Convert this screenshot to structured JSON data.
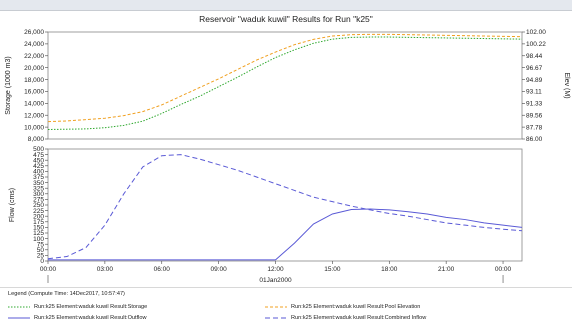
{
  "window": {
    "title": ""
  },
  "chart_data": [
    {
      "type": "line",
      "title": "Reservoir \"waduk kuwil\" Results for Run \"k25\"",
      "ylabel": "Storage (1000 m3)",
      "ylabel_right": "Elev (M)",
      "ylim": [
        8000,
        26000
      ],
      "ylim_right": [
        86.0,
        102.0
      ],
      "yticks": [
        8000,
        10000,
        12000,
        14000,
        16000,
        18000,
        20000,
        22000,
        24000,
        26000
      ],
      "ytick_labels": [
        "8,000",
        "10,000",
        "12,000",
        "14,000",
        "16,000",
        "18,000",
        "20,000",
        "22,000",
        "24,000",
        "26,000"
      ],
      "yticks_right_labels": [
        "86.00",
        "87.78",
        "89.56",
        "91.33",
        "93.11",
        "94.89",
        "96.67",
        "98.44",
        "100.22",
        "102.00"
      ],
      "x": [
        0,
        1,
        2,
        3,
        4,
        5,
        6,
        7,
        8,
        9,
        10,
        11,
        12,
        13,
        14,
        15,
        16,
        17,
        18,
        19,
        20,
        21,
        22,
        23,
        24,
        25
      ],
      "series": [
        {
          "name": "Run:k25 Element:waduk kuwil Result:Storage",
          "color": "#2fa82f",
          "values": [
            9600,
            9650,
            9700,
            9900,
            10300,
            11000,
            12300,
            13800,
            15200,
            16800,
            18400,
            20100,
            21700,
            23000,
            24100,
            24800,
            25100,
            25150,
            25150,
            25100,
            25050,
            25000,
            24950,
            24900,
            24850,
            24800
          ]
        },
        {
          "name": "Run:k25 Element:waduk kuwil Result:Pool Elevation",
          "color": "#f0a020",
          "axis": "right",
          "values": [
            88.6,
            88.7,
            88.9,
            89.1,
            89.5,
            90.1,
            91.1,
            92.4,
            93.7,
            95.0,
            96.4,
            97.8,
            99.0,
            100.1,
            100.9,
            101.4,
            101.6,
            101.65,
            101.65,
            101.6,
            101.55,
            101.5,
            101.45,
            101.4,
            101.35,
            101.3
          ]
        }
      ]
    },
    {
      "type": "line",
      "ylabel": "Flow (cms)",
      "ylim": [
        0,
        500
      ],
      "yticks": [
        0,
        25,
        50,
        75,
        100,
        125,
        150,
        175,
        200,
        225,
        250,
        275,
        300,
        325,
        350,
        375,
        400,
        425,
        450,
        475,
        500
      ],
      "xlabel": "01Jan2000",
      "xtick_labels": [
        "00:00",
        "03:00",
        "06:00",
        "09:00",
        "12:00",
        "15:00",
        "18:00",
        "21:00",
        "00:00"
      ],
      "x": [
        0,
        1,
        2,
        3,
        4,
        5,
        6,
        7,
        8,
        9,
        10,
        11,
        12,
        13,
        14,
        15,
        16,
        17,
        18,
        19,
        20,
        21,
        22,
        23,
        24,
        25
      ],
      "series": [
        {
          "name": "Run:k25 Element:waduk kuwil Result:Outflow",
          "color": "#5a5ad6",
          "dash": "solid",
          "values": [
            5,
            5,
            5,
            5,
            5,
            5,
            5,
            5,
            5,
            5,
            5,
            5,
            5,
            80,
            165,
            210,
            230,
            232,
            228,
            220,
            210,
            195,
            185,
            170,
            160,
            150
          ]
        },
        {
          "name": "Run:k25 Element:waduk kuwil Result:Combined Inflow",
          "color": "#5a5ad6",
          "dash": "dashed",
          "values": [
            10,
            20,
            60,
            160,
            300,
            420,
            470,
            475,
            455,
            430,
            405,
            375,
            345,
            315,
            285,
            265,
            245,
            228,
            212,
            200,
            185,
            170,
            160,
            150,
            142,
            135
          ]
        }
      ]
    }
  ],
  "legend": {
    "title": "Legend (Compute Time: 14Dec2017, 10:57:47)"
  }
}
